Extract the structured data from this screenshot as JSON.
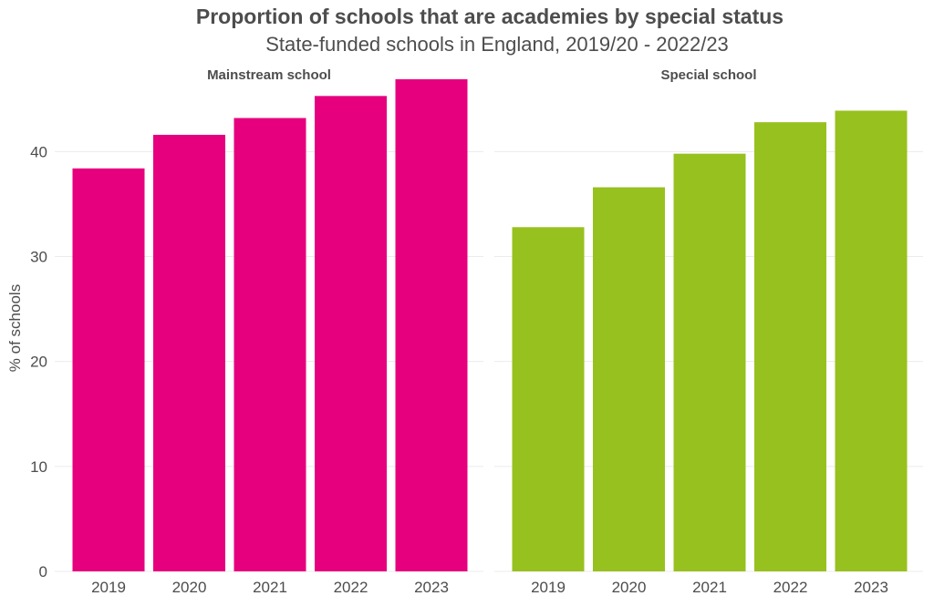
{
  "chart_data": {
    "type": "bar",
    "title": "Proportion of schools that are academies by special status",
    "subtitle": "State-funded schools in England, 2019/20 - 2022/23",
    "ylabel": "% of schools",
    "xlabel": "",
    "ylim": [
      0,
      47.5
    ],
    "yticks": [
      "0",
      "10",
      "20",
      "30",
      "40"
    ],
    "categories": [
      "2019",
      "2020",
      "2021",
      "2022",
      "2023"
    ],
    "grid": true,
    "legend": "none",
    "panels": [
      {
        "name": "Mainstream school",
        "color": "#e6007e",
        "values": [
          38.4,
          41.6,
          43.2,
          45.3,
          46.9
        ]
      },
      {
        "name": "Special school",
        "color": "#97c11f",
        "values": [
          32.8,
          36.6,
          39.8,
          42.8,
          43.9
        ]
      }
    ]
  }
}
